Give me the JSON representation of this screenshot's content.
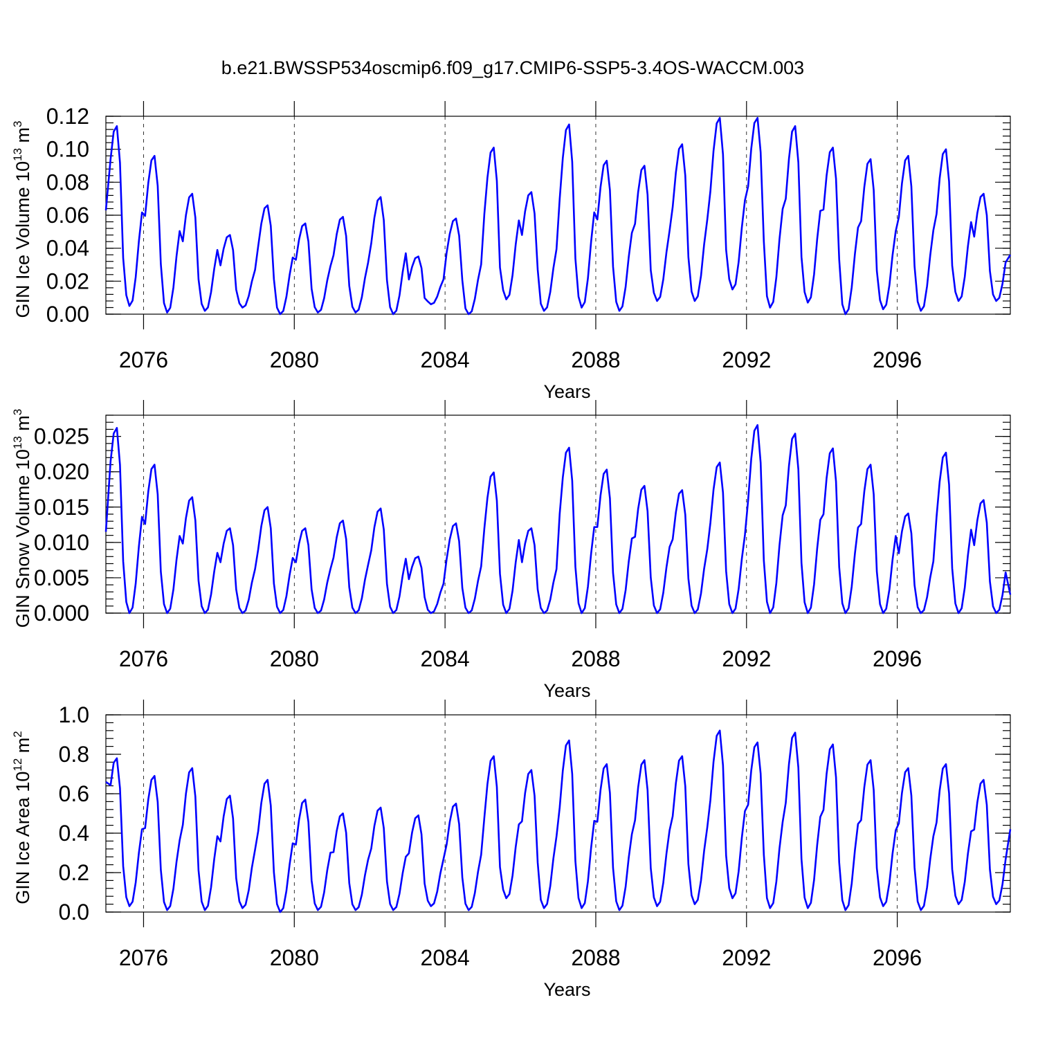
{
  "title": "b.e21.BWSSP534oscmip6.f09_g17.CMIP6-SSP5-3.4OS-WACCM.003",
  "chart_data": [
    {
      "type": "line",
      "ylabel": "GIN Ice Volume 10",
      "ylabel_exp": "13",
      "ylabel_unit": " m",
      "ylabel_unit_exp": "3",
      "xlabel": "Years",
      "xlim": [
        2075.0,
        2099.0
      ],
      "ylim": [
        0.0,
        0.12
      ],
      "xticks": [
        2076,
        2080,
        2084,
        2088,
        2092,
        2096
      ],
      "xtick_labels": [
        "2076",
        "2080",
        "2084",
        "2088",
        "2092",
        "2096"
      ],
      "yticks": [
        0.0,
        0.02,
        0.04,
        0.06,
        0.08,
        0.1,
        0.12
      ],
      "ytick_labels": [
        "0.00",
        "0.02",
        "0.04",
        "0.06",
        "0.08",
        "0.10",
        "0.12"
      ],
      "grid": "dashed vertical at year ticks",
      "color": "#0000ff",
      "cycle_peaks": [
        0.114,
        0.096,
        0.073,
        0.048,
        0.066,
        0.055,
        0.059,
        0.071,
        0.035,
        0.058,
        0.101,
        0.074,
        0.115,
        0.093,
        0.09,
        0.103,
        0.119,
        0.119,
        0.114,
        0.101,
        0.094,
        0.096,
        0.1,
        0.073
      ],
      "cycle_minima": [
        0.003,
        0.005,
        0.001,
        0.002,
        0.004,
        0.0,
        0.001,
        0.001,
        0.0,
        0.006,
        0.0,
        0.009,
        0.002,
        0.004,
        0.002,
        0.008,
        0.008,
        0.015,
        0.004,
        0.007,
        0.0,
        0.003,
        0.002,
        0.008
      ],
      "start_value": 0.063,
      "end_value": 0.036
    },
    {
      "type": "line",
      "ylabel": "GIN Snow Volume 10",
      "ylabel_exp": "13",
      "ylabel_unit": " m",
      "ylabel_unit_exp": "3",
      "xlabel": "Years",
      "xlim": [
        2075.0,
        2099.0
      ],
      "ylim": [
        0.0,
        0.028
      ],
      "xticks": [
        2076,
        2080,
        2084,
        2088,
        2092,
        2096
      ],
      "xtick_labels": [
        "2076",
        "2080",
        "2084",
        "2088",
        "2092",
        "2096"
      ],
      "yticks": [
        0.0,
        0.005,
        0.01,
        0.015,
        0.02,
        0.025
      ],
      "ytick_labels": [
        "0.000",
        "0.005",
        "0.010",
        "0.015",
        "0.020",
        "0.025"
      ],
      "grid": "dashed vertical at year ticks",
      "color": "#0000ff",
      "cycle_peaks": [
        0.0262,
        0.021,
        0.0164,
        0.012,
        0.015,
        0.012,
        0.0131,
        0.0148,
        0.008,
        0.0127,
        0.0199,
        0.012,
        0.0234,
        0.0203,
        0.018,
        0.0174,
        0.0213,
        0.0266,
        0.0254,
        0.0233,
        0.021,
        0.0141,
        0.0227,
        0.016
      ],
      "cycle_minima": [
        0.0,
        0.0,
        0.0,
        0.0,
        0.0,
        0.0,
        0.0,
        0.0,
        0.0,
        0.0,
        0.0,
        0.0,
        0.0,
        0.0,
        0.0,
        0.0,
        0.0,
        0.0,
        0.0,
        0.0,
        0.0,
        0.0,
        0.0,
        0.0
      ],
      "start_value": 0.0115,
      "end_value": 0.0026
    },
    {
      "type": "line",
      "ylabel": "GIN Ice Area 10",
      "ylabel_exp": "12",
      "ylabel_unit": " m",
      "ylabel_unit_exp": "2",
      "xlabel": "Years",
      "xlim": [
        2075.0,
        2099.0
      ],
      "ylim": [
        0.0,
        1.0
      ],
      "xticks": [
        2076,
        2080,
        2084,
        2088,
        2092,
        2096
      ],
      "xtick_labels": [
        "2076",
        "2080",
        "2084",
        "2088",
        "2092",
        "2096"
      ],
      "yticks": [
        0.0,
        0.2,
        0.4,
        0.6,
        0.8,
        1.0
      ],
      "ytick_labels": [
        "0.0",
        "0.2",
        "0.4",
        "0.6",
        "0.8",
        "1.0"
      ],
      "grid": "dashed vertical at year ticks",
      "color": "#0000ff",
      "cycle_peaks": [
        0.78,
        0.69,
        0.73,
        0.59,
        0.67,
        0.57,
        0.5,
        0.53,
        0.49,
        0.55,
        0.79,
        0.72,
        0.87,
        0.75,
        0.77,
        0.79,
        0.92,
        0.86,
        0.91,
        0.85,
        0.77,
        0.73,
        0.75,
        0.67
      ],
      "cycle_minima": [
        0.02,
        0.03,
        0.01,
        0.01,
        0.02,
        0.0,
        0.01,
        0.01,
        0.01,
        0.03,
        0.01,
        0.07,
        0.02,
        0.02,
        0.01,
        0.03,
        0.04,
        0.07,
        0.02,
        0.02,
        0.01,
        0.03,
        0.01,
        0.04
      ],
      "start_value": 0.66,
      "end_value": 0.42
    }
  ]
}
